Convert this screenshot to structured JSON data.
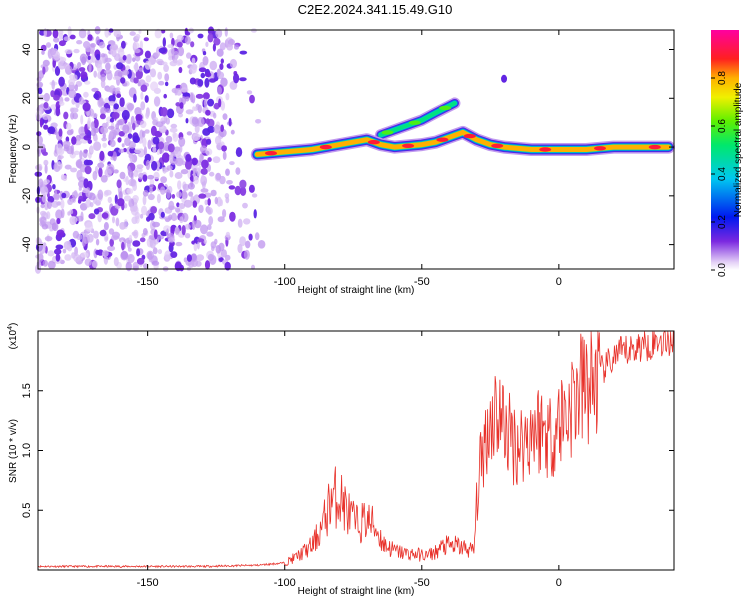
{
  "title": "C2E2.2024.341.15.49.G10",
  "chart_data": [
    {
      "type": "heatmap",
      "name": "spectrogram",
      "xlabel": "Height of straight line (km)",
      "ylabel": "Frequency (Hz)",
      "xlim": [
        -190,
        42
      ],
      "ylim": [
        -50,
        48
      ],
      "x_ticks": [
        -150,
        -100,
        -50,
        0
      ],
      "x_tick_labels": [
        "-150",
        "-100",
        "-50",
        "0"
      ],
      "y_ticks": [
        40,
        20,
        0,
        -20,
        -40
      ],
      "y_tick_labels": [
        "40",
        "20",
        "0",
        "-20",
        "-40"
      ],
      "colorbar": {
        "label": "Normalized spectral amplitude",
        "range": [
          0,
          1
        ],
        "ticks": [
          0.0,
          0.2,
          0.4,
          0.6,
          0.8
        ],
        "tick_labels": [
          "0.0",
          "0.2",
          "0.4",
          "0.6",
          "0.8"
        ]
      },
      "features": [
        {
          "desc": "broadband noise",
          "x_range": [
            -190,
            -108
          ],
          "freq_range": [
            -50,
            48
          ],
          "amplitude": 0.15
        },
        {
          "desc": "main trace",
          "points": [
            [
              -110,
              -3
            ],
            [
              -100,
              -2
            ],
            [
              -90,
              -1
            ],
            [
              -80,
              1
            ],
            [
              -70,
              3
            ],
            [
              -65,
              1
            ],
            [
              -60,
              0
            ],
            [
              -50,
              1
            ],
            [
              -45,
              2
            ],
            [
              -40,
              4
            ],
            [
              -35,
              6
            ],
            [
              -30,
              3
            ],
            [
              -25,
              1
            ],
            [
              -20,
              0
            ],
            [
              -10,
              -1
            ],
            [
              0,
              -1
            ],
            [
              10,
              -1
            ],
            [
              20,
              0
            ],
            [
              30,
              0
            ],
            [
              40,
              0
            ]
          ],
          "amplitude": 0.8
        },
        {
          "desc": "upper branch",
          "points": [
            [
              -65,
              5
            ],
            [
              -60,
              7
            ],
            [
              -55,
              9
            ],
            [
              -50,
              11
            ],
            [
              -45,
              14
            ],
            [
              -38,
              18
            ]
          ],
          "amplitude": 0.5
        },
        {
          "desc": "isolated echo",
          "points": [
            [
              -20,
              28
            ]
          ],
          "amplitude": 0.3
        }
      ]
    },
    {
      "type": "line",
      "name": "snr",
      "xlabel": "Height of straight line (km)",
      "ylabel": "SNR (10 * v/v)",
      "y_scale_label": "(x10",
      "y_scale_exponent": "4",
      "xlim": [
        -190,
        42
      ],
      "ylim": [
        0,
        2.0
      ],
      "x_ticks": [
        -150,
        -100,
        -50,
        0
      ],
      "x_tick_labels": [
        "-150",
        "-100",
        "-50",
        "0"
      ],
      "y_ticks": [
        0.5,
        1.0,
        1.5
      ],
      "y_tick_labels": [
        "0.5",
        "1.0",
        "1.5"
      ],
      "series": [
        {
          "name": "SNR",
          "color": "#e8312a",
          "x": [
            -190,
            -170,
            -150,
            -130,
            -110,
            -100,
            -95,
            -90,
            -86,
            -83,
            -80,
            -77,
            -74,
            -70,
            -67,
            -64,
            -60,
            -56,
            -52,
            -48,
            -45,
            -42,
            -40,
            -37,
            -34,
            -31,
            -30,
            -29,
            -27,
            -25,
            -23,
            -20,
            -18,
            -15,
            -12,
            -9,
            -6,
            -3,
            0,
            3,
            6,
            9,
            12,
            15,
            18,
            21,
            24,
            27,
            30,
            33,
            36,
            39,
            42
          ],
          "values": [
            0.03,
            0.03,
            0.03,
            0.03,
            0.04,
            0.06,
            0.12,
            0.2,
            0.38,
            0.6,
            0.62,
            0.48,
            0.38,
            0.42,
            0.36,
            0.22,
            0.16,
            0.14,
            0.13,
            0.12,
            0.15,
            0.2,
            0.2,
            0.2,
            0.18,
            0.16,
            0.55,
            0.8,
            1.1,
            1.25,
            1.35,
            1.22,
            1.12,
            1.05,
            1.1,
            1.2,
            1.18,
            1.12,
            1.25,
            1.32,
            1.45,
            1.52,
            1.55,
            1.65,
            1.72,
            1.8,
            1.82,
            1.85,
            1.88,
            1.9,
            1.92,
            1.93,
            1.94
          ]
        }
      ]
    }
  ]
}
